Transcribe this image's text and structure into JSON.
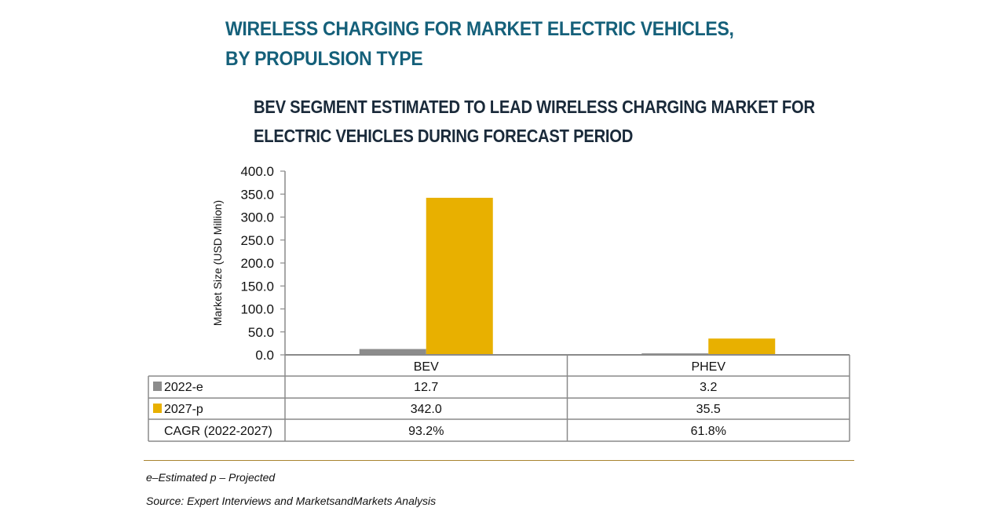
{
  "header": {
    "title_line1": "WIRELESS CHARGING FOR MARKET ELECTRIC VEHICLES,",
    "title_line2": "BY PROPULSION TYPE",
    "subtitle_line1": "BEV SEGMENT ESTIMATED TO LEAD WIRELESS CHARGING MARKET FOR",
    "subtitle_line2": "ELECTRIC VEHICLES DURING FORECAST PERIOD"
  },
  "footer": {
    "note": "e–Estimated p – Projected",
    "source": "Source: Expert Interviews and MarketsandMarkets Analysis"
  },
  "colors": {
    "title": "#15607a",
    "series_2022": "#8c8c8c",
    "series_2027": "#e8b000",
    "rule": "#a88430"
  },
  "chart_data": {
    "type": "bar",
    "title": "BEV SEGMENT ESTIMATED TO LEAD WIRELESS CHARGING MARKET FOR ELECTRIC VEHICLES DURING FORECAST PERIOD",
    "xlabel": "",
    "ylabel": "Market Size (USD Million)",
    "ylim": [
      0,
      400
    ],
    "yticks": [
      "0.0",
      "50.0",
      "100.0",
      "150.0",
      "200.0",
      "250.0",
      "300.0",
      "350.0",
      "400.0"
    ],
    "grid": false,
    "legend": "in data table (left)",
    "categories": [
      "BEV",
      "PHEV"
    ],
    "series": [
      {
        "name": "2022-e",
        "values": [
          12.7,
          3.2
        ],
        "labels": [
          "12.7",
          "3.2"
        ],
        "color": "#8c8c8c"
      },
      {
        "name": "2027-p",
        "values": [
          342.0,
          35.5
        ],
        "labels": [
          "342.0",
          "35.5"
        ],
        "color": "#e8b000"
      }
    ],
    "extra_rows": [
      {
        "name": "CAGR (2022-2027)",
        "values": [
          "93.2%",
          "61.8%"
        ]
      }
    ]
  }
}
